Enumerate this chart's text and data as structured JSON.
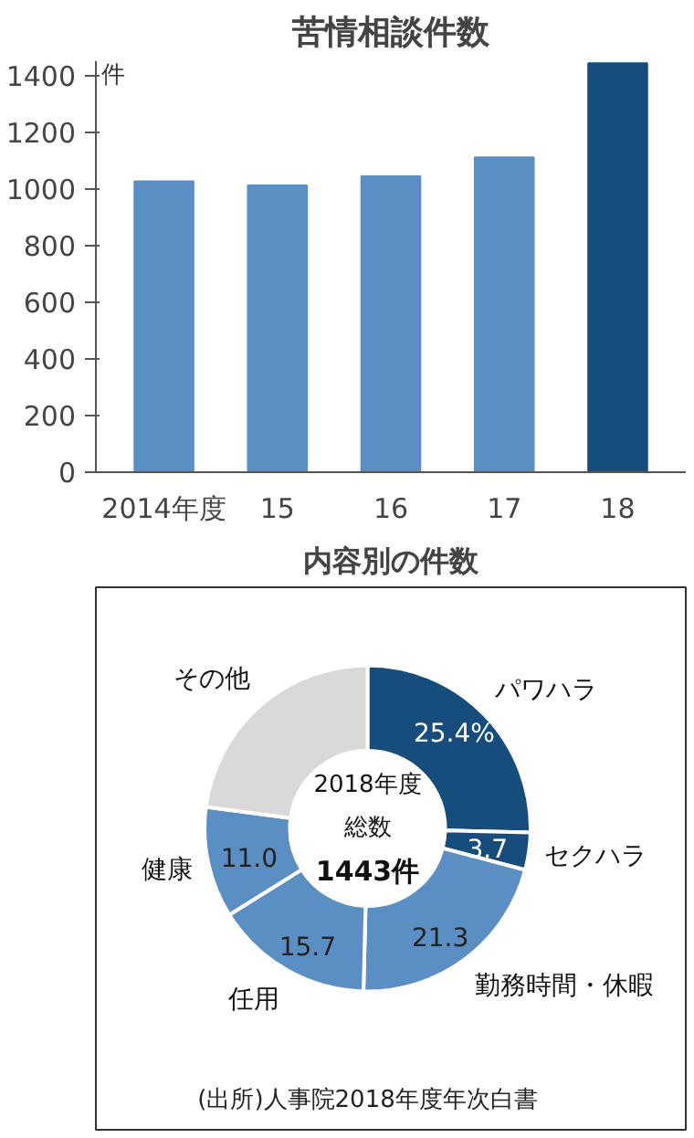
{
  "chart_data": [
    {
      "type": "bar",
      "title": "苦情相談件数",
      "ylabel": "件",
      "categories": [
        "2014年度",
        "15",
        "16",
        "17",
        "18"
      ],
      "values": [
        1026,
        1012,
        1044,
        1111,
        1443
      ],
      "colors": [
        "#5b8fc4",
        "#5b8fc4",
        "#5b8fc4",
        "#5b8fc4",
        "#164d7d"
      ],
      "ylim": [
        0,
        1450
      ],
      "yticks": [
        0,
        200,
        400,
        600,
        800,
        1000,
        1200,
        1400
      ],
      "grid": false
    },
    {
      "type": "donut",
      "title": "内容別の件数",
      "categories": [
        "パワハラ",
        "セクハラ",
        "勤務時間・休暇",
        "任用",
        "健康",
        "その他"
      ],
      "values": [
        25.4,
        3.7,
        21.3,
        15.7,
        11.0,
        22.9
      ],
      "value_labels": [
        "25.4%",
        "3.7",
        "21.3",
        "15.7",
        "11.0",
        null
      ],
      "colors": [
        "#164d7d",
        "#164d7d",
        "#5b8fc4",
        "#5b8fc4",
        "#5b8fc4",
        "#d9d9d9"
      ],
      "annotations": [
        "2018年度",
        "総数",
        "1443件",
        "(出所)人事院2018年度年次白書"
      ]
    }
  ]
}
